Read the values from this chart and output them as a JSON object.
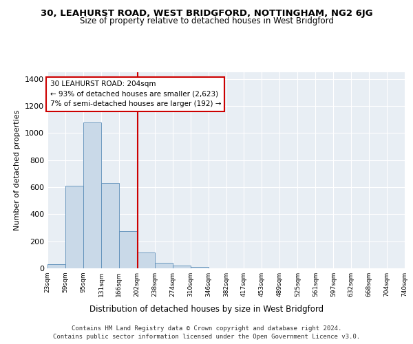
{
  "title": "30, LEAHURST ROAD, WEST BRIDGFORD, NOTTINGHAM, NG2 6JG",
  "subtitle": "Size of property relative to detached houses in West Bridgford",
  "xlabel": "Distribution of detached houses by size in West Bridgford",
  "ylabel": "Number of detached properties",
  "bar_color": "#c9d9e8",
  "bar_edge_color": "#5b8db8",
  "background_color": "#e8eef4",
  "grid_color": "#ffffff",
  "property_line_x": 204,
  "property_line_color": "#cc0000",
  "annotation_text": "30 LEAHURST ROAD: 204sqm\n← 93% of detached houses are smaller (2,623)\n7% of semi-detached houses are larger (192) →",
  "annotation_box_color": "#ffffff",
  "annotation_box_edge_color": "#cc0000",
  "footer_line1": "Contains HM Land Registry data © Crown copyright and database right 2024.",
  "footer_line2": "Contains public sector information licensed under the Open Government Licence v3.0.",
  "bin_edges": [
    23,
    59,
    95,
    131,
    166,
    202,
    238,
    274,
    310,
    346,
    382,
    417,
    453,
    489,
    525,
    561,
    597,
    632,
    668,
    704,
    740
  ],
  "bar_heights": [
    30,
    610,
    1080,
    630,
    275,
    115,
    40,
    20,
    10,
    0,
    0,
    0,
    0,
    0,
    0,
    0,
    0,
    0,
    0,
    0
  ],
  "ylim": [
    0,
    1450
  ],
  "yticks": [
    0,
    200,
    400,
    600,
    800,
    1000,
    1200,
    1400
  ]
}
